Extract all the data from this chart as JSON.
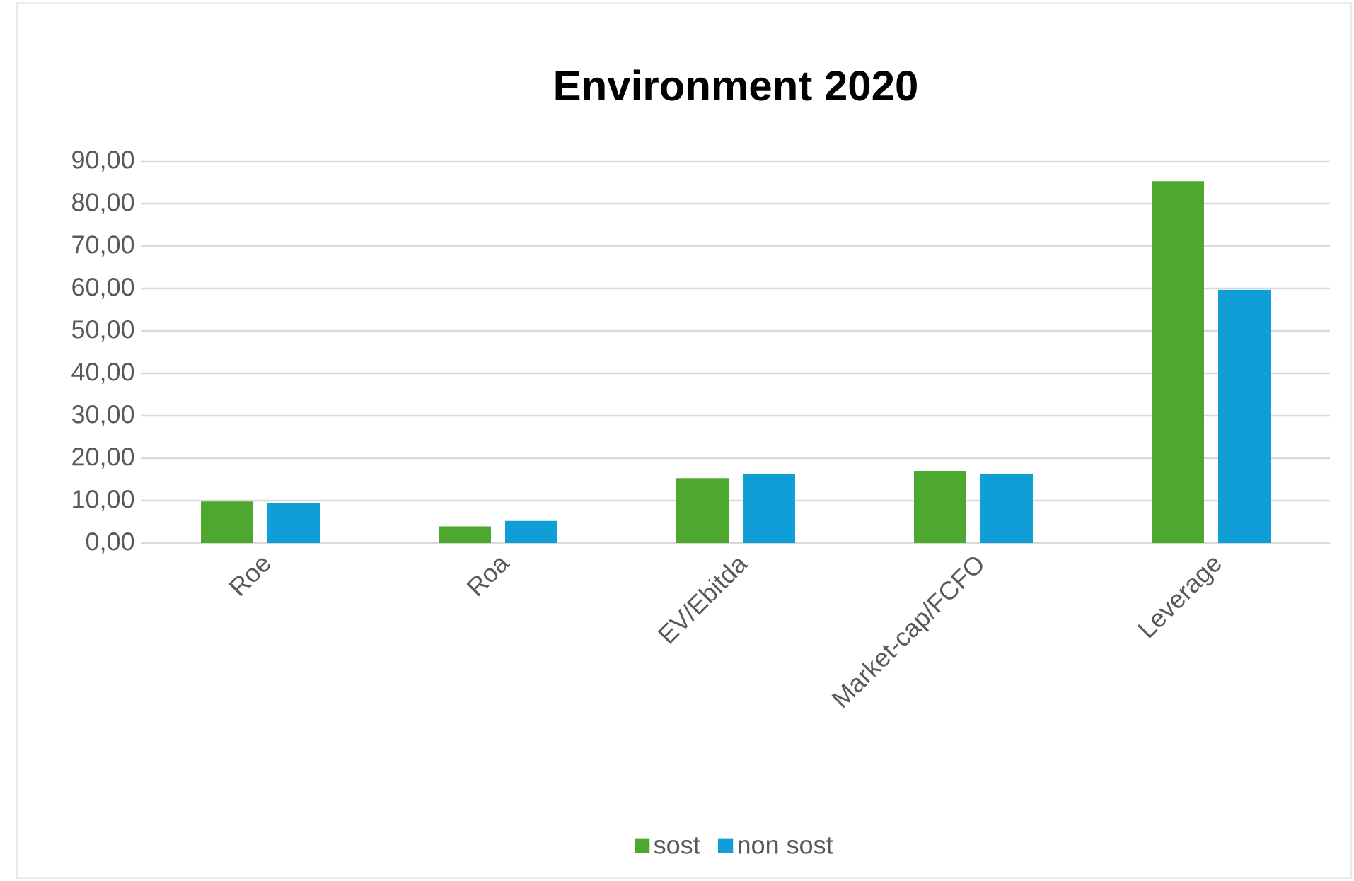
{
  "chart_data": {
    "type": "bar",
    "title": "Environment 2020",
    "categories": [
      "Roe",
      "Roa",
      "EV/Ebitda",
      "Market-cap/FCFO",
      "Leverage"
    ],
    "series": [
      {
        "name": "sost",
        "color": "#4ea72e",
        "values": [
          9.8,
          3.9,
          15.3,
          17.0,
          85.3
        ]
      },
      {
        "name": "non sost",
        "color": "#0f9ed5",
        "values": [
          9.4,
          5.2,
          16.3,
          16.3,
          59.7
        ]
      }
    ],
    "ylim": [
      0,
      90
    ],
    "yticks": [
      {
        "value": 0,
        "label": "0,00"
      },
      {
        "value": 10,
        "label": "10,00"
      },
      {
        "value": 20,
        "label": "20,00"
      },
      {
        "value": 30,
        "label": "30,00"
      },
      {
        "value": 40,
        "label": "40,00"
      },
      {
        "value": 50,
        "label": "50,00"
      },
      {
        "value": 60,
        "label": "60,00"
      },
      {
        "value": 70,
        "label": "70,00"
      },
      {
        "value": 80,
        "label": "80,00"
      },
      {
        "value": 90,
        "label": "90,00"
      }
    ],
    "grid": "y",
    "legend": "bottom"
  }
}
